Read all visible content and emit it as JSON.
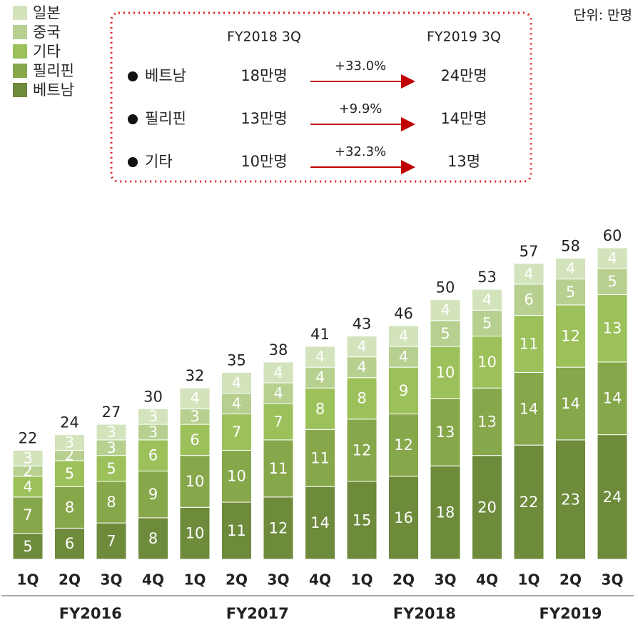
{
  "chart_data": {
    "type": "stacked_bar",
    "unit": "단위: 만명",
    "groups": [
      {
        "label": "FY2016",
        "categories": [
          "1Q",
          "2Q",
          "3Q",
          "4Q"
        ]
      },
      {
        "label": "FY2017",
        "categories": [
          "1Q",
          "2Q",
          "3Q",
          "4Q"
        ]
      },
      {
        "label": "FY2018",
        "categories": [
          "1Q",
          "2Q",
          "3Q",
          "4Q"
        ]
      },
      {
        "label": "FY2019",
        "categories": [
          "1Q",
          "2Q",
          "3Q"
        ]
      }
    ],
    "series": [
      {
        "name": "베트남",
        "color": "#6e8a3b",
        "values": [
          5,
          6,
          7,
          8,
          10,
          11,
          12,
          14,
          15,
          16,
          18,
          20,
          22,
          23,
          24
        ]
      },
      {
        "name": "필리핀",
        "color": "#87a74b",
        "values": [
          7,
          8,
          8,
          9,
          10,
          10,
          11,
          11,
          12,
          12,
          13,
          13,
          14,
          14,
          14
        ]
      },
      {
        "name": "기타",
        "color": "#9dc15a",
        "values": [
          4,
          5,
          5,
          6,
          6,
          7,
          7,
          8,
          8,
          9,
          10,
          10,
          11,
          12,
          13
        ]
      },
      {
        "name": "중국",
        "color": "#b7d08f",
        "values": [
          2,
          2,
          3,
          3,
          3,
          4,
          4,
          4,
          4,
          4,
          5,
          5,
          6,
          5,
          5
        ]
      },
      {
        "name": "일본",
        "color": "#d3e3bb",
        "values": [
          3,
          3,
          3,
          3,
          4,
          4,
          4,
          4,
          4,
          4,
          4,
          4,
          4,
          4,
          4
        ]
      }
    ],
    "totals": [
      22,
      24,
      27,
      30,
      32,
      35,
      38,
      41,
      43,
      46,
      50,
      53,
      57,
      58,
      60
    ],
    "ylim": [
      0,
      60
    ],
    "summary": {
      "headers": [
        "FY2018 3Q",
        "FY2019 3Q"
      ],
      "rows": [
        {
          "name": "베트남",
          "from": "18만명",
          "change": "+33.0%",
          "to": "24만명"
        },
        {
          "name": "필리핀",
          "from": "13만명",
          "change": "+9.9%",
          "to": "14만명"
        },
        {
          "name": "기타",
          "from": "10만명",
          "change": "+32.3%",
          "to": "13명"
        }
      ]
    }
  }
}
